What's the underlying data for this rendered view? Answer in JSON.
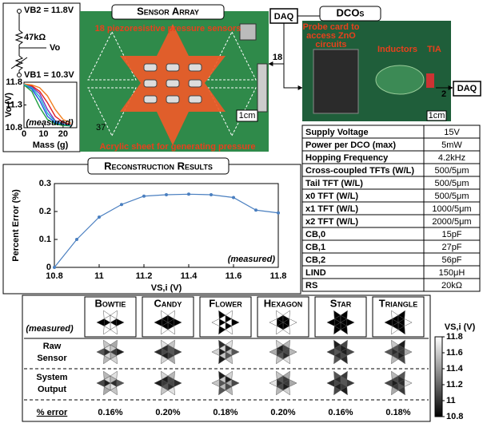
{
  "sensor_array": {
    "title": "Sensor Array",
    "sensors_label": "18 piezoresistive pressure sensors",
    "acrylic_label": "Acrylic sheet for generating pressure",
    "scale": "1cm",
    "board_id": "37"
  },
  "circuit": {
    "vb2": "VB2 = 11.8V",
    "resistor": "47kΩ",
    "vo": "Vo",
    "vb1": "VB1 = 10.3V"
  },
  "inset_chart": {
    "type": "line",
    "xlabel": "Mass (g)",
    "ylabel": "Vo (V)",
    "annotation": "(measured)",
    "x": [
      0,
      4,
      8,
      12,
      16,
      20,
      24
    ],
    "xlim": [
      0,
      27
    ],
    "ylim": [
      10.8,
      11.8
    ],
    "xticks": [
      0,
      10,
      20
    ],
    "yticks": [
      10.8,
      11.3,
      11.8
    ],
    "series": [
      {
        "color": "#7b2fbe",
        "values": [
          11.75,
          11.7,
          11.55,
          11.2,
          10.95,
          10.88,
          10.85
        ]
      },
      {
        "color": "#1f4fe0",
        "values": [
          11.75,
          11.65,
          11.4,
          11.05,
          10.9,
          10.86,
          10.84
        ]
      },
      {
        "color": "#e02020",
        "values": [
          11.76,
          11.72,
          11.6,
          11.35,
          11.05,
          10.92,
          10.87
        ]
      },
      {
        "color": "#20a040",
        "values": [
          11.74,
          11.6,
          11.25,
          10.98,
          10.88,
          10.85,
          10.84
        ]
      },
      {
        "color": "#f08020",
        "values": [
          11.76,
          11.74,
          11.68,
          11.5,
          11.2,
          10.98,
          10.9
        ]
      },
      {
        "color": "#20b0d0",
        "values": [
          11.75,
          11.68,
          11.48,
          11.12,
          10.93,
          10.87,
          10.85
        ]
      }
    ]
  },
  "link": {
    "daq": "DAQ",
    "bus_width": "18"
  },
  "dcos": {
    "title": "DCOs",
    "probe_label": [
      "Probe card to",
      "access ZnO",
      "circuits"
    ],
    "inductors_label": "Inductors",
    "tia_label": "TIA",
    "output_width": "2",
    "daq": "DAQ",
    "scale": "1cm"
  },
  "spec_table": {
    "rows": [
      [
        "Supply Voltage",
        "15V"
      ],
      [
        "Power per DCO (max)",
        "5mW"
      ],
      [
        "Hopping Frequency",
        "4.2kHz"
      ],
      [
        "Cross-coupled TFTs (W/L)",
        "500/5μm"
      ],
      [
        "Tail TFT (W/L)",
        "500/5μm"
      ],
      [
        "x0 TFT (W/L)",
        "500/5μm"
      ],
      [
        "x1 TFT (W/L)",
        "1000/5μm"
      ],
      [
        "x2 TFT (W/L)",
        "2000/5μm"
      ],
      [
        "CB,0",
        "15pF"
      ],
      [
        "CB,1",
        "27pF"
      ],
      [
        "CB,2",
        "56pF"
      ],
      [
        "LIND",
        "150μH"
      ],
      [
        "RS",
        "20kΩ"
      ]
    ]
  },
  "chart_data": {
    "type": "line",
    "title": "Reconstruction Results",
    "xlabel": "VS,i (V)",
    "ylabel": "Percent Error (%)",
    "annotation": "(measured)",
    "x": [
      10.8,
      10.9,
      11.0,
      11.1,
      11.2,
      11.3,
      11.4,
      11.5,
      11.6,
      11.7,
      11.8
    ],
    "series": [
      {
        "color": "#4a7fc0",
        "values": [
          0,
          0.1,
          0.18,
          0.225,
          0.255,
          0.26,
          0.262,
          0.26,
          0.25,
          0.205,
          0.195
        ]
      }
    ],
    "xlim": [
      10.8,
      11.8
    ],
    "ylim": [
      0,
      0.3
    ],
    "xticks": [
      10.8,
      11,
      11.2,
      11.4,
      11.6,
      11.8
    ],
    "yticks": [
      0,
      0.1,
      0.2,
      0.3
    ]
  },
  "shape_grid": {
    "measured_label": "(measured)",
    "columns": [
      "Bowtie",
      "Candy",
      "Flower",
      "Hexagon",
      "Star",
      "Triangle"
    ],
    "rows": [
      [
        "Raw",
        "Sensor"
      ],
      [
        "System",
        "Output"
      ],
      [
        "% error"
      ]
    ],
    "errors": [
      "0.16%",
      "0.20%",
      "0.18%",
      "0.20%",
      "0.16%",
      "0.18%"
    ],
    "colorbar": {
      "label": "VS,i (V)",
      "lim": [
        10.8,
        11.8
      ],
      "ticks": [
        10.8,
        11,
        11.2,
        11.4,
        11.6,
        11.8
      ]
    }
  }
}
